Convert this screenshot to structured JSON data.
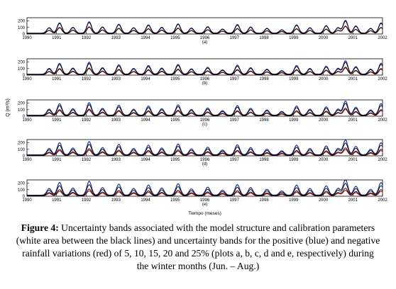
{
  "figure": {
    "y_axis_label": "Q (m³/s)",
    "x_axis_label": "Tiempo (meses)",
    "caption_label": "Figure 4:",
    "caption_text": "Uncertainty bands associated with the model structure and calibration parameters (white area between the black lines) and uncertainty bands for the positive (blue) and negative rainfall variations (red) of 5, 10, 15, 20 and 25% (plots a, b, c, d and e, respectively) during the winter months (Jun. – Aug.)",
    "colors": {
      "model_band": "#000000",
      "positive": "#1f2fb0",
      "negative": "#d01818"
    }
  },
  "chart_data": {
    "type": "line",
    "x_ticks": [
      "1990",
      "1991",
      "1992",
      "1993",
      "1994",
      "1995",
      "1996",
      "1997",
      "1998",
      "1999",
      "2000",
      "2001",
      "2002"
    ],
    "y_ticks": [
      "0",
      "100",
      "200"
    ],
    "ylim": [
      0,
      250
    ],
    "xlim": [
      1990,
      2002
    ],
    "panels": [
      {
        "label": "(a)",
        "rainfall_variation_pct": 5
      },
      {
        "label": "(b)",
        "rainfall_variation_pct": 10
      },
      {
        "label": "(c)",
        "rainfall_variation_pct": 15
      },
      {
        "label": "(d)",
        "rainfall_variation_pct": 20
      },
      {
        "label": "(e)",
        "rainfall_variation_pct": 25
      }
    ],
    "series": [
      {
        "role": "model_upper",
        "peaks": [
          {
            "year": 1990.75,
            "q": 80
          },
          {
            "year": 1991.1,
            "q": 150
          },
          {
            "year": 1991.55,
            "q": 85
          },
          {
            "year": 1992.1,
            "q": 165
          },
          {
            "year": 1992.55,
            "q": 90
          },
          {
            "year": 1993.1,
            "q": 130
          },
          {
            "year": 1993.6,
            "q": 80
          },
          {
            "year": 1994.1,
            "q": 120
          },
          {
            "year": 1994.55,
            "q": 85
          },
          {
            "year": 1995.1,
            "q": 135
          },
          {
            "year": 1995.55,
            "q": 75
          },
          {
            "year": 1996.1,
            "q": 95
          },
          {
            "year": 1996.6,
            "q": 60
          },
          {
            "year": 1997.1,
            "q": 125
          },
          {
            "year": 1997.55,
            "q": 90
          },
          {
            "year": 1998.1,
            "q": 70
          },
          {
            "year": 1998.6,
            "q": 50
          },
          {
            "year": 1999.1,
            "q": 120
          },
          {
            "year": 1999.55,
            "q": 80
          },
          {
            "year": 2000.1,
            "q": 110
          },
          {
            "year": 2000.5,
            "q": 80
          },
          {
            "year": 2000.75,
            "q": 185
          },
          {
            "year": 2001.1,
            "q": 105
          },
          {
            "year": 2001.6,
            "q": 70
          },
          {
            "year": 2001.95,
            "q": 150
          }
        ]
      },
      {
        "role": "model_lower",
        "scale": 0.62
      }
    ]
  }
}
